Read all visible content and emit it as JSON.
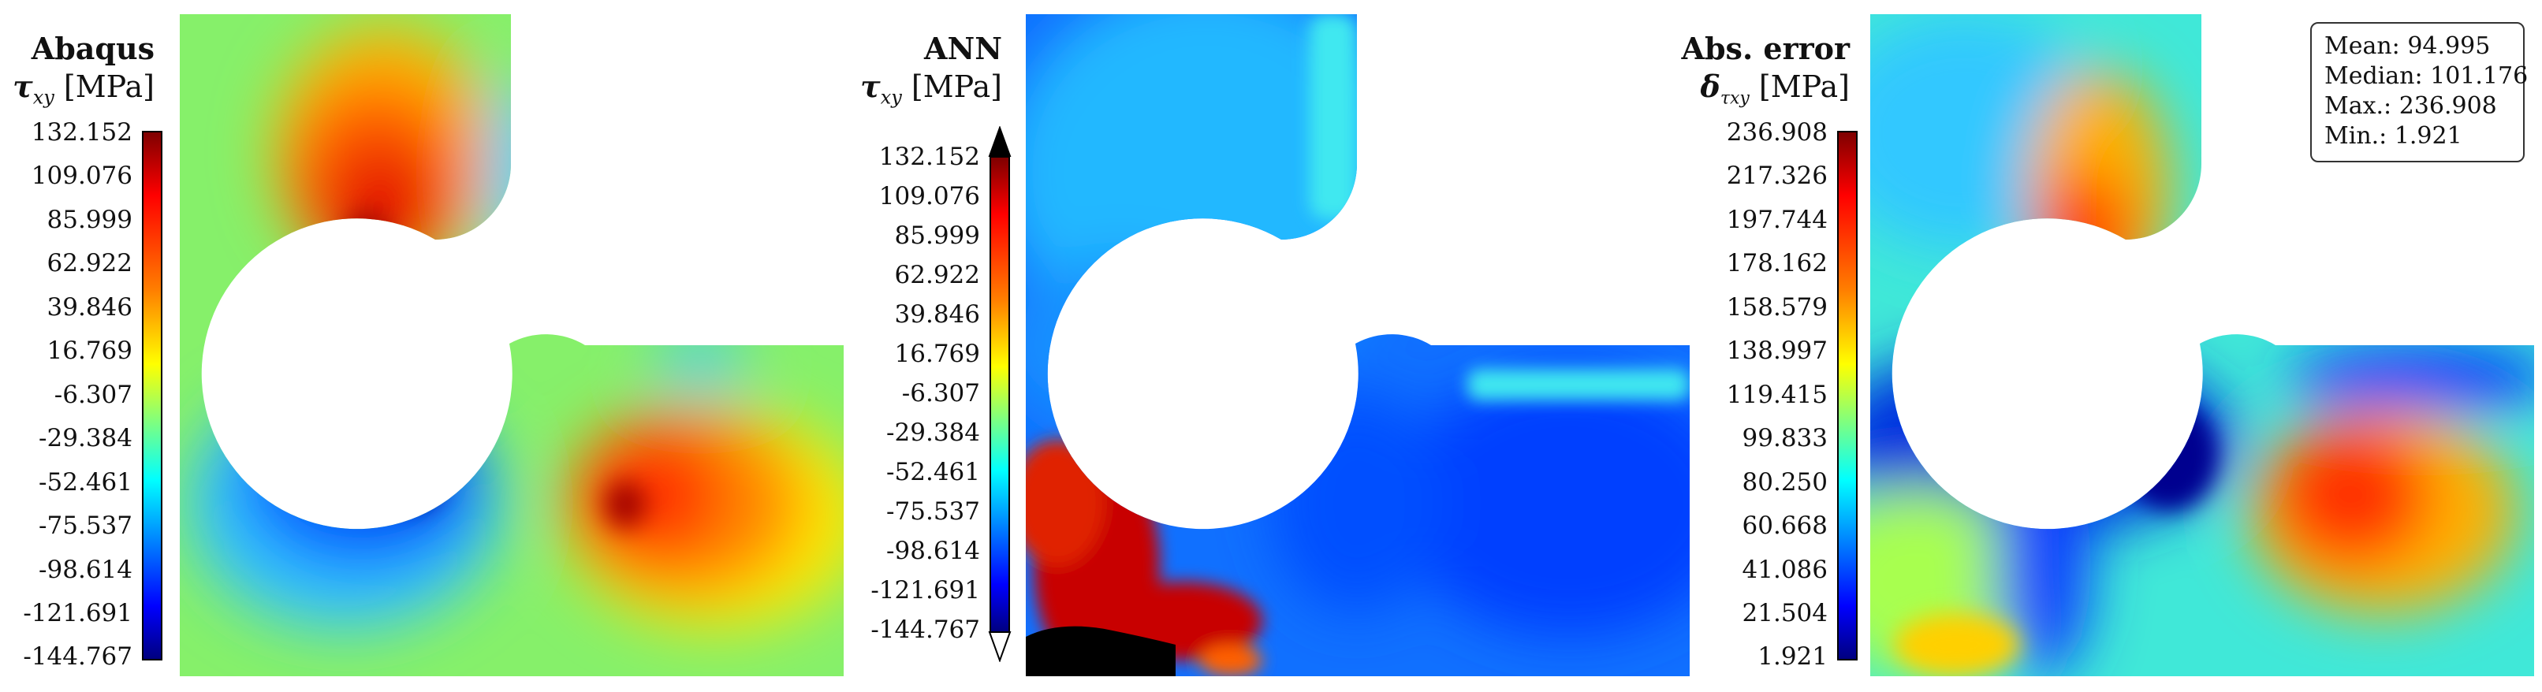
{
  "panels": [
    {
      "id": "abaqus",
      "title": "Abaqus",
      "symbol": "τ",
      "symbol_sub": "xy",
      "unit": "[MPa]",
      "ticks": [
        "132.152",
        "109.076",
        "85.999",
        "62.922",
        "39.846",
        "16.769",
        "-6.307",
        "-29.384",
        "-52.461",
        "-75.537",
        "-98.614",
        "-121.691",
        "-144.767"
      ]
    },
    {
      "id": "ann",
      "title": "ANN",
      "symbol": "τ",
      "symbol_sub": "xy",
      "unit": "[MPa]",
      "ticks": [
        "132.152",
        "109.076",
        "85.999",
        "62.922",
        "39.846",
        "16.769",
        "-6.307",
        "-29.384",
        "-52.461",
        "-75.537",
        "-98.614",
        "-121.691",
        "-144.767"
      ]
    },
    {
      "id": "abs-error",
      "title": "Abs. error",
      "symbol": "δ",
      "symbol_sub": "τxy",
      "unit": "[MPa]",
      "ticks": [
        "236.908",
        "217.326",
        "197.744",
        "178.162",
        "158.579",
        "138.997",
        "119.415",
        "99.833",
        "80.250",
        "60.668",
        "41.086",
        "21.504",
        "1.921"
      ]
    }
  ],
  "stats": {
    "mean": "Mean: 94.995",
    "median": "Median: 101.176",
    "max": "Max.: 236.908",
    "min": "Min.: 1.921"
  },
  "colormap": [
    "#00007f",
    "#0000ff",
    "#007fff",
    "#00ffff",
    "#7fff7f",
    "#ffff00",
    "#ff7f00",
    "#ff0000",
    "#7f0000"
  ]
}
